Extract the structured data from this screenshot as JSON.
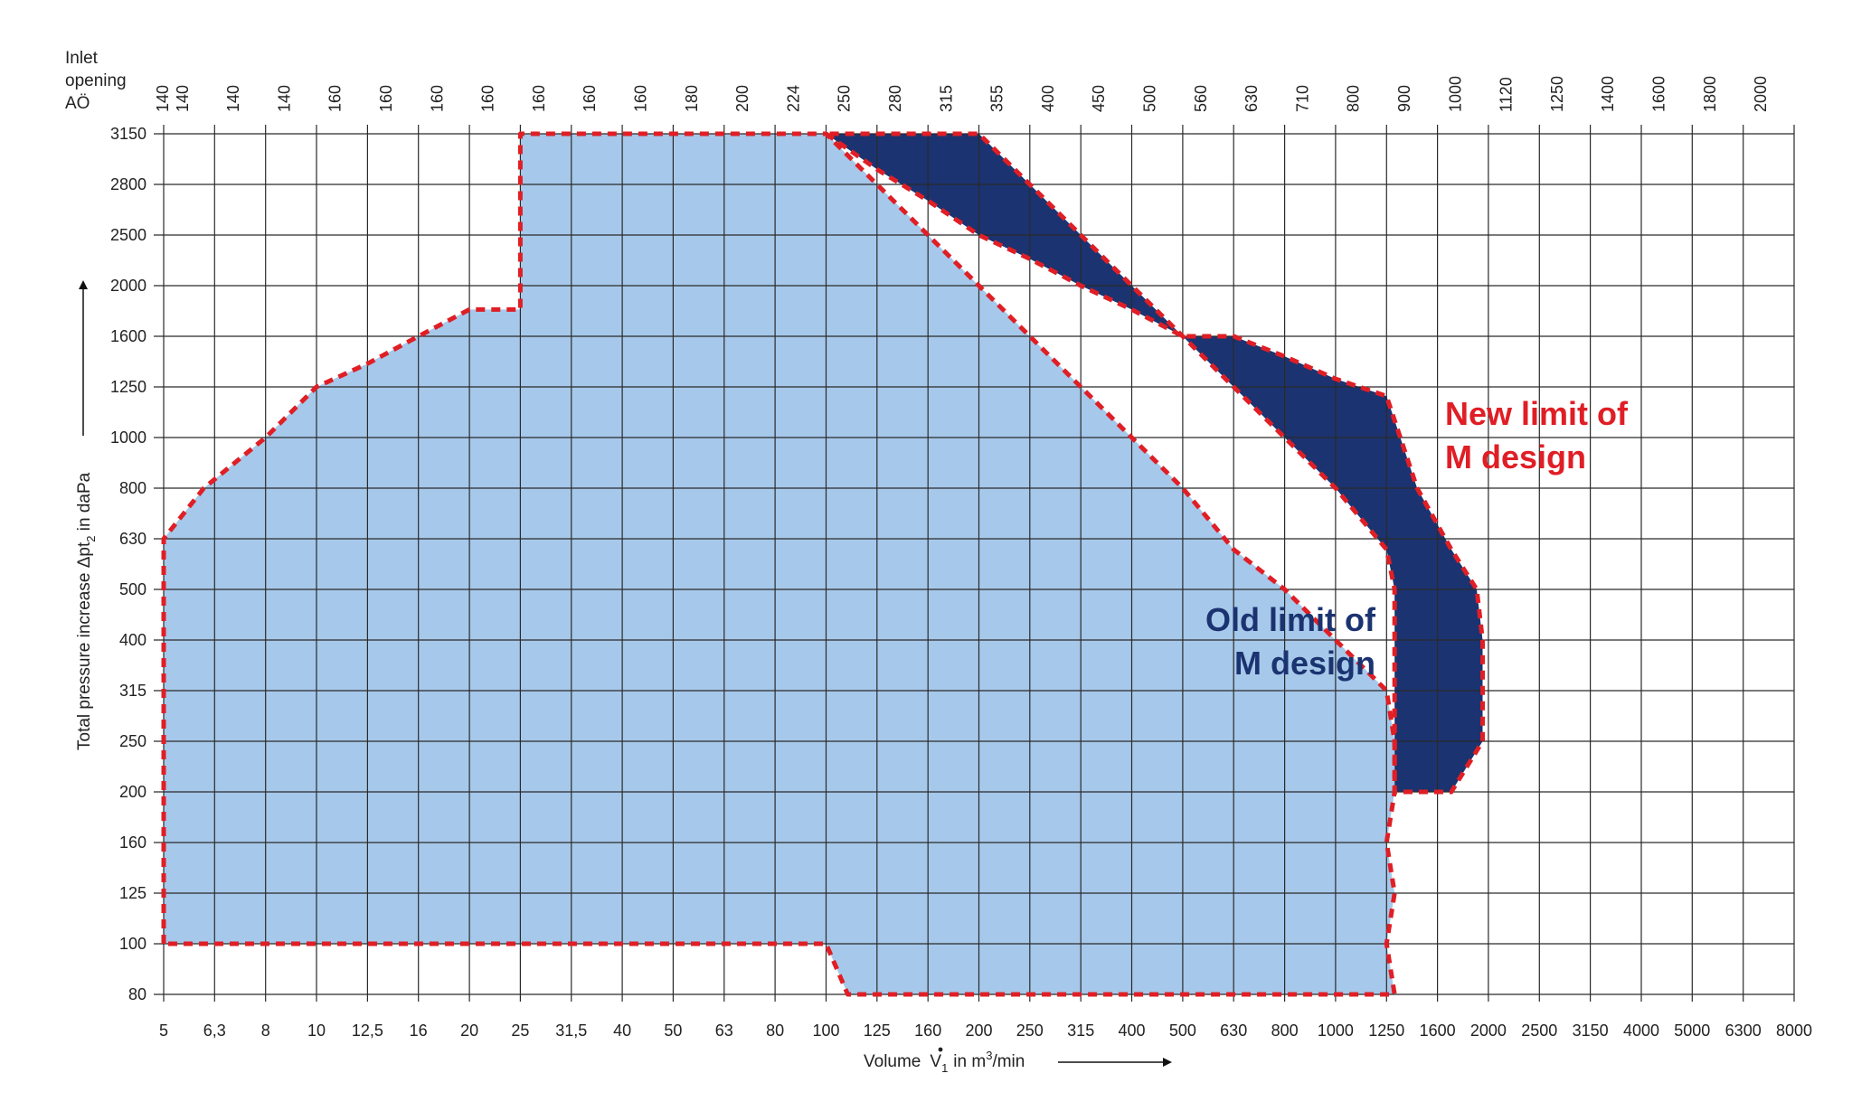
{
  "chart_data": {
    "type": "area",
    "title": "",
    "top_axis_label_lines": [
      "Inlet",
      "opening",
      "AÖ"
    ],
    "top_ticks": [
      "140",
      "140",
      "140",
      "140",
      "160",
      "160",
      "160",
      "160",
      "160",
      "160",
      "160",
      "180",
      "200",
      "224",
      "250",
      "280",
      "315",
      "355",
      "400",
      "450",
      "500",
      "560",
      "630",
      "710",
      "800",
      "900",
      "1000",
      "1120",
      "1250",
      "1400",
      "1600",
      "1800",
      "2000"
    ],
    "x_ticks": [
      "5",
      "6,3",
      "8",
      "10",
      "12,5",
      "16",
      "20",
      "25",
      "31,5",
      "40",
      "50",
      "63",
      "80",
      "100",
      "125",
      "160",
      "200",
      "250",
      "315",
      "400",
      "500",
      "630",
      "800",
      "1000",
      "1250",
      "1600",
      "2000",
      "2500",
      "3150",
      "4000",
      "5000",
      "6300",
      "8000"
    ],
    "y_ticks": [
      "80",
      "100",
      "125",
      "160",
      "200",
      "250",
      "315",
      "400",
      "500",
      "630",
      "800",
      "1000",
      "1250",
      "1600",
      "2000",
      "2500",
      "2800",
      "3150"
    ],
    "xlabel": {
      "prefix": "Volume",
      "symbol": "V",
      "sub": "1",
      "mid": "in m",
      "sup": "3",
      "suffix": "/min"
    },
    "ylabel": {
      "prefix": "Total pressure increase  Δpt",
      "sub": "2",
      "suffix": " in daPa"
    },
    "x_scale": "log",
    "xlim": [
      5,
      8000
    ],
    "ylim": [
      80,
      3150
    ],
    "grid": true,
    "colors": {
      "old_area": "#a6c8ea",
      "new_area": "#1b3370",
      "limit_line": "#e01e25",
      "grid": "#2a2a2a",
      "new_label": "#e01e25",
      "old_label": "#1b3370"
    },
    "series": [
      {
        "name": "Old limit of M design",
        "x": [
          5,
          5,
          6,
          8,
          10,
          12.5,
          16,
          20,
          25,
          25,
          31.5,
          40,
          50,
          63,
          80,
          100,
          125,
          160,
          200,
          250,
          315,
          400,
          500,
          630,
          800,
          1000,
          1250,
          1300,
          1300,
          1250,
          1300,
          1250,
          1300,
          1000,
          800,
          630,
          500,
          400,
          315,
          250,
          200,
          160,
          125,
          110,
          100,
          80,
          63,
          50,
          40,
          31.5,
          25,
          20,
          16,
          12.5,
          10,
          8,
          6.3,
          5
        ],
        "y": [
          100,
          630,
          800,
          1000,
          1250,
          1400,
          1600,
          1800,
          1800,
          3150,
          3150,
          3150,
          3150,
          3150,
          3150,
          3150,
          2800,
          2500,
          2000,
          1600,
          1250,
          1000,
          800,
          600,
          500,
          400,
          315,
          250,
          200,
          160,
          125,
          100,
          80,
          80,
          80,
          80,
          80,
          80,
          80,
          80,
          80,
          80,
          80,
          80,
          100,
          100,
          100,
          100,
          100,
          100,
          100,
          100,
          100,
          100,
          100,
          100,
          100,
          100
        ]
      },
      {
        "name": "New limit of M design",
        "x": [
          100,
          125,
          160,
          200,
          250,
          315,
          400,
          500,
          630,
          800,
          1000,
          1250,
          1450,
          1700,
          1900,
          1950,
          1950,
          1700,
          1300,
          1300,
          1250,
          1000,
          800,
          630,
          500,
          400,
          315,
          250,
          200,
          160,
          125,
          100
        ],
        "y": [
          3150,
          2900,
          2700,
          2500,
          2250,
          2000,
          1800,
          1600,
          1600,
          1450,
          1300,
          1200,
          800,
          600,
          500,
          400,
          250,
          200,
          200,
          500,
          600,
          800,
          1000,
          1250,
          1600,
          2000,
          2500,
          2800,
          3150,
          3150,
          3150,
          3150
        ]
      }
    ],
    "annotations": [
      {
        "lines": [
          "New limit of",
          "M design"
        ],
        "color": "#e01e25"
      },
      {
        "lines": [
          "Old limit of",
          "M design"
        ],
        "color": "#1b3370"
      }
    ]
  }
}
